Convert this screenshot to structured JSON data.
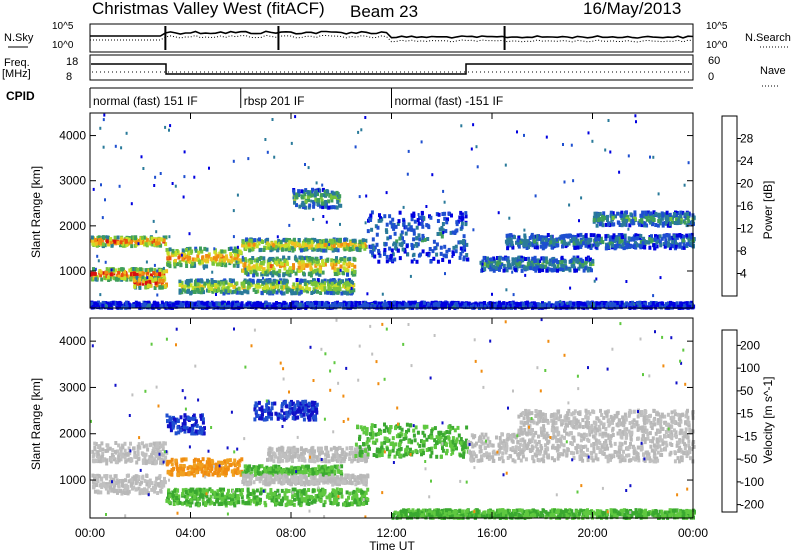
{
  "header": {
    "station": "Christmas Valley West (fitACF)",
    "beam": "Beam 23",
    "date": "16/May/2013"
  },
  "summary": {
    "nsky_label": "N.Sky",
    "nsky_top": "10^5",
    "nsky_bottom": "10^0",
    "nsearch_label": "N.Search",
    "nsearch_top": "10^5",
    "nsearch_bottom": "10^0",
    "freq_label": "Freq.",
    "freq_unit": "[MHz]",
    "freq_top": "18",
    "freq_bottom": "8",
    "nave_label": "Nave",
    "nave_top": "60",
    "nave_bottom": "0",
    "cpid_label": "CPID",
    "segments": [
      {
        "label": "normal (fast) 151 IF",
        "start_ut": 0.0
      },
      {
        "label": "rbsp 201 IF",
        "start_ut": 6.0
      },
      {
        "label": "normal (fast) -151 IF",
        "start_ut": 12.0
      }
    ]
  },
  "chart_data": [
    {
      "type": "heatmap",
      "name": "power-panel",
      "xlabel": "Time UT",
      "ylabel": "Slant Range [km]",
      "xlim": [
        0,
        24
      ],
      "ylim": [
        180,
        4500
      ],
      "xticks": [
        "00:00",
        "04:00",
        "08:00",
        "12:00",
        "16:00",
        "20:00",
        "00:00"
      ],
      "yticks": [
        1000,
        2000,
        3000,
        4000
      ],
      "colorbar": {
        "label": "Power [dB]",
        "ticks": [
          4,
          8,
          12,
          16,
          20,
          24,
          28
        ],
        "colors": [
          "#0000e0",
          "#1e4fd0",
          "#2a7a9a",
          "#3f9e5a",
          "#79c43a",
          "#c6e028",
          "#f0c020",
          "#f08c10",
          "#e85010",
          "#d81010"
        ]
      },
      "bands": [
        {
          "t0": 0.0,
          "t1": 3.0,
          "r0": 1550,
          "r1": 1750,
          "level": 0.9
        },
        {
          "t0": 0.0,
          "t1": 3.0,
          "r0": 800,
          "r1": 1050,
          "level": 0.95
        },
        {
          "t0": 1.7,
          "t1": 3.0,
          "r0": 620,
          "r1": 850,
          "level": 1.0
        },
        {
          "t0": 3.0,
          "t1": 6.0,
          "r0": 1100,
          "r1": 1500,
          "level": 0.8
        },
        {
          "t0": 3.5,
          "t1": 10.5,
          "r0": 500,
          "r1": 800,
          "level": 0.6
        },
        {
          "t0": 6.0,
          "t1": 10.5,
          "r0": 900,
          "r1": 1300,
          "level": 0.75
        },
        {
          "t0": 6.0,
          "t1": 11.0,
          "r0": 1450,
          "r1": 1700,
          "level": 0.7
        },
        {
          "t0": 8.0,
          "t1": 10.0,
          "r0": 2400,
          "r1": 2800,
          "level": 0.45
        },
        {
          "t0": 11.0,
          "t1": 15.0,
          "r0": 1200,
          "r1": 2300,
          "level": 0.25
        },
        {
          "t0": 15.5,
          "t1": 20.0,
          "r0": 1000,
          "r1": 1300,
          "level": 0.35
        },
        {
          "t0": 16.5,
          "t1": 20.0,
          "r0": 1500,
          "r1": 1800,
          "level": 0.3
        },
        {
          "t0": 20.0,
          "t1": 24.0,
          "r0": 2000,
          "r1": 2300,
          "level": 0.35
        },
        {
          "t0": 20.0,
          "t1": 24.0,
          "r0": 1500,
          "r1": 1800,
          "level": 0.3
        },
        {
          "t0": 0.0,
          "t1": 24.0,
          "r0": 180,
          "r1": 300,
          "level": 0.15
        }
      ]
    },
    {
      "type": "heatmap",
      "name": "velocity-panel",
      "xlabel": "Time UT",
      "ylabel": "Slant Range [km]",
      "xlim": [
        0,
        24
      ],
      "ylim": [
        180,
        4500
      ],
      "xticks": [
        "00:00",
        "04:00",
        "08:00",
        "12:00",
        "16:00",
        "20:00",
        "00:00"
      ],
      "yticks": [
        1000,
        2000,
        3000,
        4000
      ],
      "colorbar": {
        "label": "Velocity [m s^-1]",
        "ticks": [
          200,
          100,
          50,
          15,
          -15,
          -50,
          -100,
          -200
        ],
        "colors": [
          "#1010c8",
          "#2050d0",
          "#2a8a4a",
          "#5fc840",
          "#c0c0c0",
          "#c0c0c0",
          "#f0a020",
          "#f07010",
          "#e83010",
          "#d80010"
        ]
      },
      "bands": [
        {
          "t0": 0.0,
          "t1": 3.0,
          "r0": 1350,
          "r1": 1800,
          "v": "grey"
        },
        {
          "t0": 0.0,
          "t1": 3.0,
          "r0": 700,
          "r1": 1100,
          "v": "grey"
        },
        {
          "t0": 3.0,
          "t1": 6.0,
          "r0": 1100,
          "r1": 1450,
          "v": "orange"
        },
        {
          "t0": 3.0,
          "t1": 11.0,
          "r0": 450,
          "r1": 800,
          "v": "green"
        },
        {
          "t0": 6.0,
          "t1": 10.0,
          "r0": 1100,
          "r1": 1300,
          "v": "green"
        },
        {
          "t0": 6.0,
          "t1": 11.0,
          "r0": 900,
          "r1": 1100,
          "v": "grey"
        },
        {
          "t0": 7.0,
          "t1": 11.0,
          "r0": 1400,
          "r1": 1700,
          "v": "grey"
        },
        {
          "t0": 3.0,
          "t1": 4.5,
          "r0": 2000,
          "r1": 2400,
          "v": "blue"
        },
        {
          "t0": 6.5,
          "t1": 9.0,
          "r0": 2300,
          "r1": 2700,
          "v": "blue"
        },
        {
          "t0": 10.5,
          "t1": 15.0,
          "r0": 1500,
          "r1": 2200,
          "v": "green"
        },
        {
          "t0": 15.0,
          "t1": 24.0,
          "r0": 1400,
          "r1": 2000,
          "v": "grey"
        },
        {
          "t0": 17.0,
          "t1": 24.0,
          "r0": 2000,
          "r1": 2500,
          "v": "grey"
        },
        {
          "t0": 12.0,
          "t1": 24.0,
          "r0": 180,
          "r1": 350,
          "v": "green"
        }
      ]
    }
  ]
}
